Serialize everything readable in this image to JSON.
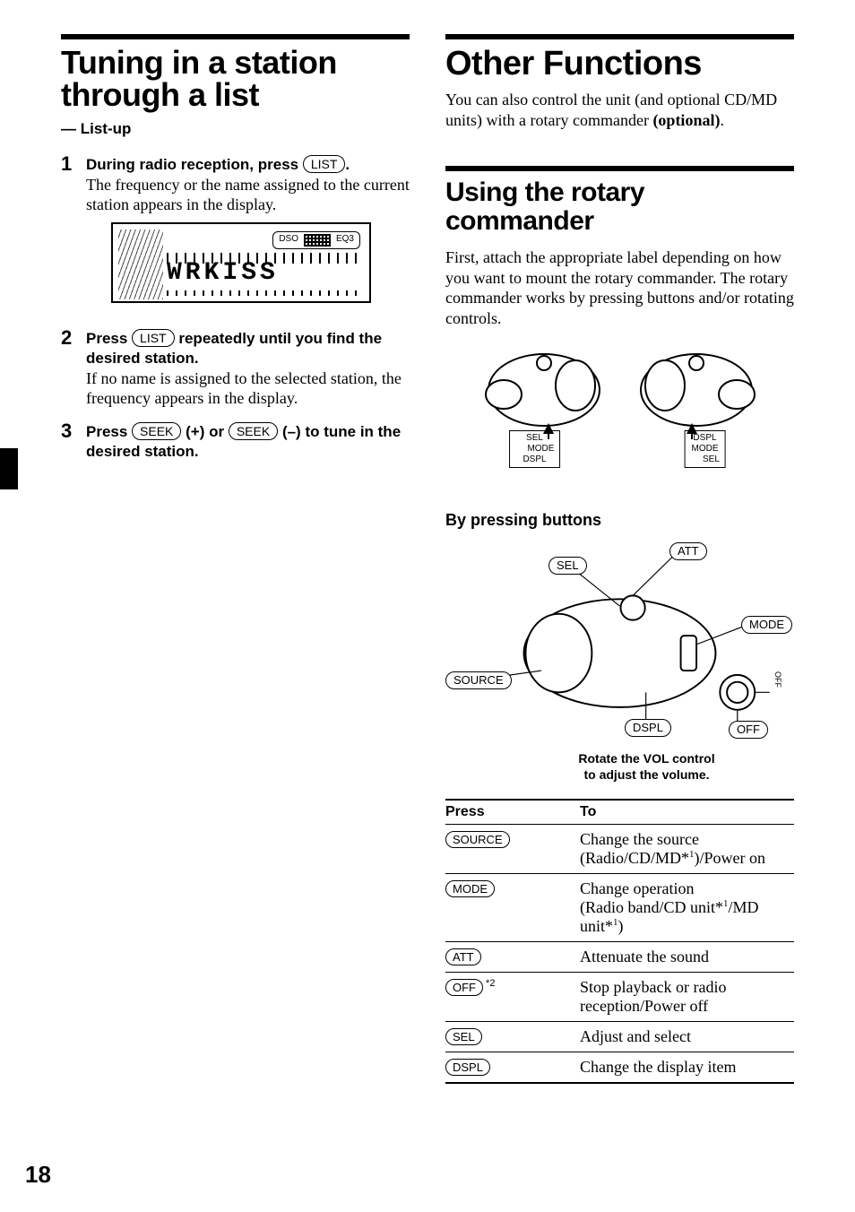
{
  "left": {
    "title": "Tuning in a station through a list",
    "subtitle": "— List-up",
    "steps": [
      {
        "num": "1",
        "head_before": "During radio reception, press ",
        "head_pill": "LIST",
        "head_after": ".",
        "desc": "The frequency or the name assigned to the current station appears in the display."
      },
      {
        "num": "2",
        "head_before": "Press ",
        "head_pill": "LIST",
        "head_after": " repeatedly until you find the desired station.",
        "desc": "If no name is assigned to the selected station, the frequency appears in the display."
      },
      {
        "num": "3",
        "head_full_html": true,
        "head_before": "Press ",
        "head_pill": "SEEK",
        "head_mid": " (+) or ",
        "head_pill2": "SEEK",
        "head_after": " (–) to tune in the desired station.",
        "desc": ""
      }
    ],
    "lcd": {
      "badge_left": "DSO",
      "badge_right": "EQ3",
      "seg_text": "WRKISS"
    }
  },
  "right": {
    "title": "Other Functions",
    "intro_before": "You can also control the unit (and optional CD/MD units) with a rotary commander ",
    "intro_bold": "(optional)",
    "intro_after": ".",
    "sub_title": "Using the rotary commander",
    "sub_intro": "First, attach the appropriate label depending on how you want to mount the rotary commander. The rotary commander works by pressing buttons and/or rotating controls.",
    "tag_left": "SEL\n     MODE\nDSPL",
    "tag_right": "DSPL\nMODE\n     SEL",
    "by_pressing": "By pressing buttons",
    "callouts": {
      "att": "ATT",
      "sel": "SEL",
      "mode": "MODE",
      "source": "SOURCE",
      "dspl": "DSPL",
      "off": "OFF",
      "off_side": "OFF"
    },
    "caption_l1": "Rotate the VOL control",
    "caption_l2": "to adjust the volume.",
    "table": {
      "head_press": "Press",
      "head_to": "To",
      "rows": [
        {
          "btn": "SOURCE",
          "note": "",
          "to": "Change the source (Radio/CD/MD*1)/Power on",
          "to_html": "Change the source<br>(Radio/CD/MD*<span class='sup'>1</span>)/Power on"
        },
        {
          "btn": "MODE",
          "note": "",
          "to_html": "Change operation<br>(Radio band/CD unit*<span class='sup'>1</span>/MD unit*<span class='sup'>1</span>)"
        },
        {
          "btn": "ATT",
          "note": "",
          "to_html": "Attenuate the sound"
        },
        {
          "btn": "OFF",
          "note": "*2",
          "to_html": "Stop playback or radio reception/Power off"
        },
        {
          "btn": "SEL",
          "note": "",
          "to_html": "Adjust and select"
        },
        {
          "btn": "DSPL",
          "note": "",
          "to_html": "Change the display item"
        }
      ]
    }
  },
  "page_number": "18",
  "colors": {
    "fg": "#000000",
    "bg": "#ffffff"
  }
}
